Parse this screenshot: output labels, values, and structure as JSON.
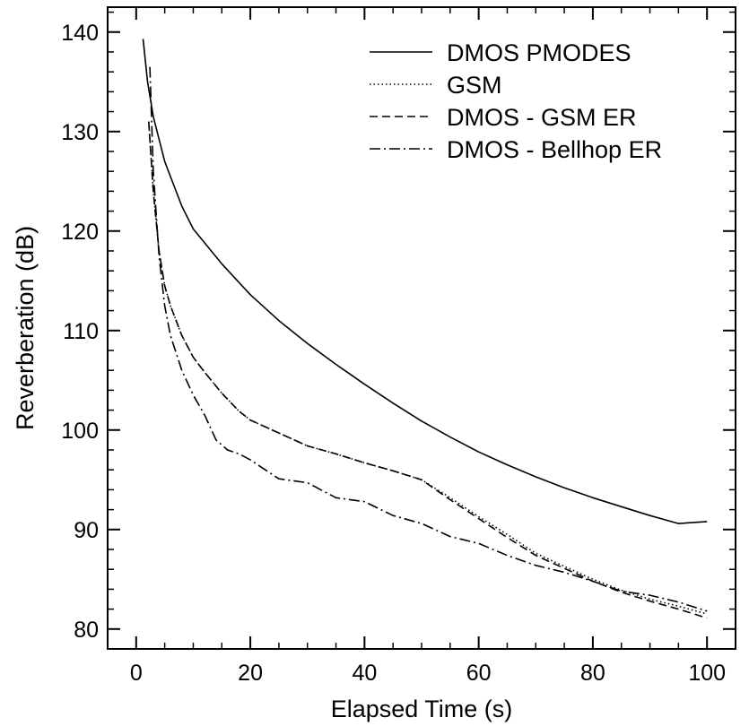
{
  "chart_data": {
    "type": "line",
    "title": "",
    "xlabel": "Elapsed Time (s)",
    "ylabel": "Reverberation (dB)",
    "xlim": [
      -5,
      105
    ],
    "ylim": [
      78,
      142.5
    ],
    "xticks": [
      0,
      20,
      40,
      60,
      80,
      100
    ],
    "yticks": [
      80,
      90,
      100,
      110,
      120,
      130,
      140
    ],
    "xtick_labels": [
      "0",
      "20",
      "40",
      "60",
      "80",
      "100"
    ],
    "ytick_labels": [
      "80",
      "90",
      "100",
      "110",
      "120",
      "130",
      "140"
    ],
    "grid": false,
    "legend_position": "top-right",
    "series": [
      {
        "name": "DMOS PMODES",
        "style": "solid",
        "color": "#000000",
        "x": [
          1.2,
          2,
          3,
          5,
          8,
          10,
          15,
          20,
          25,
          30,
          35,
          40,
          45,
          50,
          55,
          60,
          65,
          70,
          75,
          80,
          85,
          90,
          95,
          100
        ],
        "y": [
          139.3,
          135.0,
          131.5,
          127.0,
          122.5,
          120.2,
          116.7,
          113.6,
          111.0,
          108.7,
          106.6,
          104.6,
          102.7,
          100.9,
          99.3,
          97.8,
          96.5,
          95.3,
          94.2,
          93.2,
          92.3,
          91.4,
          90.6,
          90.8
        ]
      },
      {
        "name": "GSM",
        "style": "dotted",
        "color": "#000000",
        "x": [
          2.2,
          3,
          4,
          5,
          6,
          8,
          10,
          12,
          15,
          18,
          20,
          25,
          30,
          35,
          40,
          45,
          50,
          55,
          60,
          65,
          70,
          75,
          80,
          85,
          90,
          95,
          100
        ],
        "y": [
          131.0,
          124.0,
          118.0,
          114.5,
          112.5,
          109.5,
          107.3,
          105.8,
          103.7,
          101.9,
          101.0,
          99.7,
          98.4,
          97.6,
          96.7,
          95.9,
          95.0,
          93.2,
          91.3,
          89.5,
          87.6,
          86.3,
          85.0,
          83.9,
          83.0,
          82.3,
          81.5
        ]
      },
      {
        "name": "DMOS - GSM ER",
        "style": "dashed",
        "color": "#000000",
        "x": [
          2.2,
          3,
          4,
          5,
          6,
          8,
          10,
          12,
          15,
          18,
          20,
          25,
          30,
          35,
          40,
          45,
          50,
          55,
          60,
          65,
          70,
          75,
          80,
          85,
          90,
          95,
          100
        ],
        "y": [
          131.0,
          124.0,
          118.0,
          114.5,
          112.5,
          109.5,
          107.3,
          105.8,
          103.7,
          101.9,
          101.0,
          99.7,
          98.4,
          97.6,
          96.7,
          95.9,
          95.0,
          93.0,
          91.1,
          89.2,
          87.4,
          86.1,
          84.8,
          83.7,
          82.8,
          82.0,
          81.1
        ]
      },
      {
        "name": "DMOS - Bellhop ER",
        "style": "dashdot",
        "color": "#000000",
        "x": [
          2.4,
          3,
          4,
          5,
          6,
          8,
          10,
          12,
          14,
          16,
          18,
          20,
          25,
          30,
          35,
          40,
          45,
          50,
          55,
          60,
          65,
          70,
          75,
          80,
          85,
          90,
          95,
          100
        ],
        "y": [
          136.5,
          126.0,
          117.5,
          112.5,
          109.5,
          106.0,
          103.5,
          101.5,
          99.0,
          98.0,
          97.6,
          97.0,
          95.1,
          94.7,
          93.2,
          92.8,
          91.4,
          90.6,
          89.3,
          88.6,
          87.4,
          86.4,
          85.7,
          84.8,
          83.8,
          83.4,
          82.7,
          81.8
        ]
      }
    ]
  }
}
